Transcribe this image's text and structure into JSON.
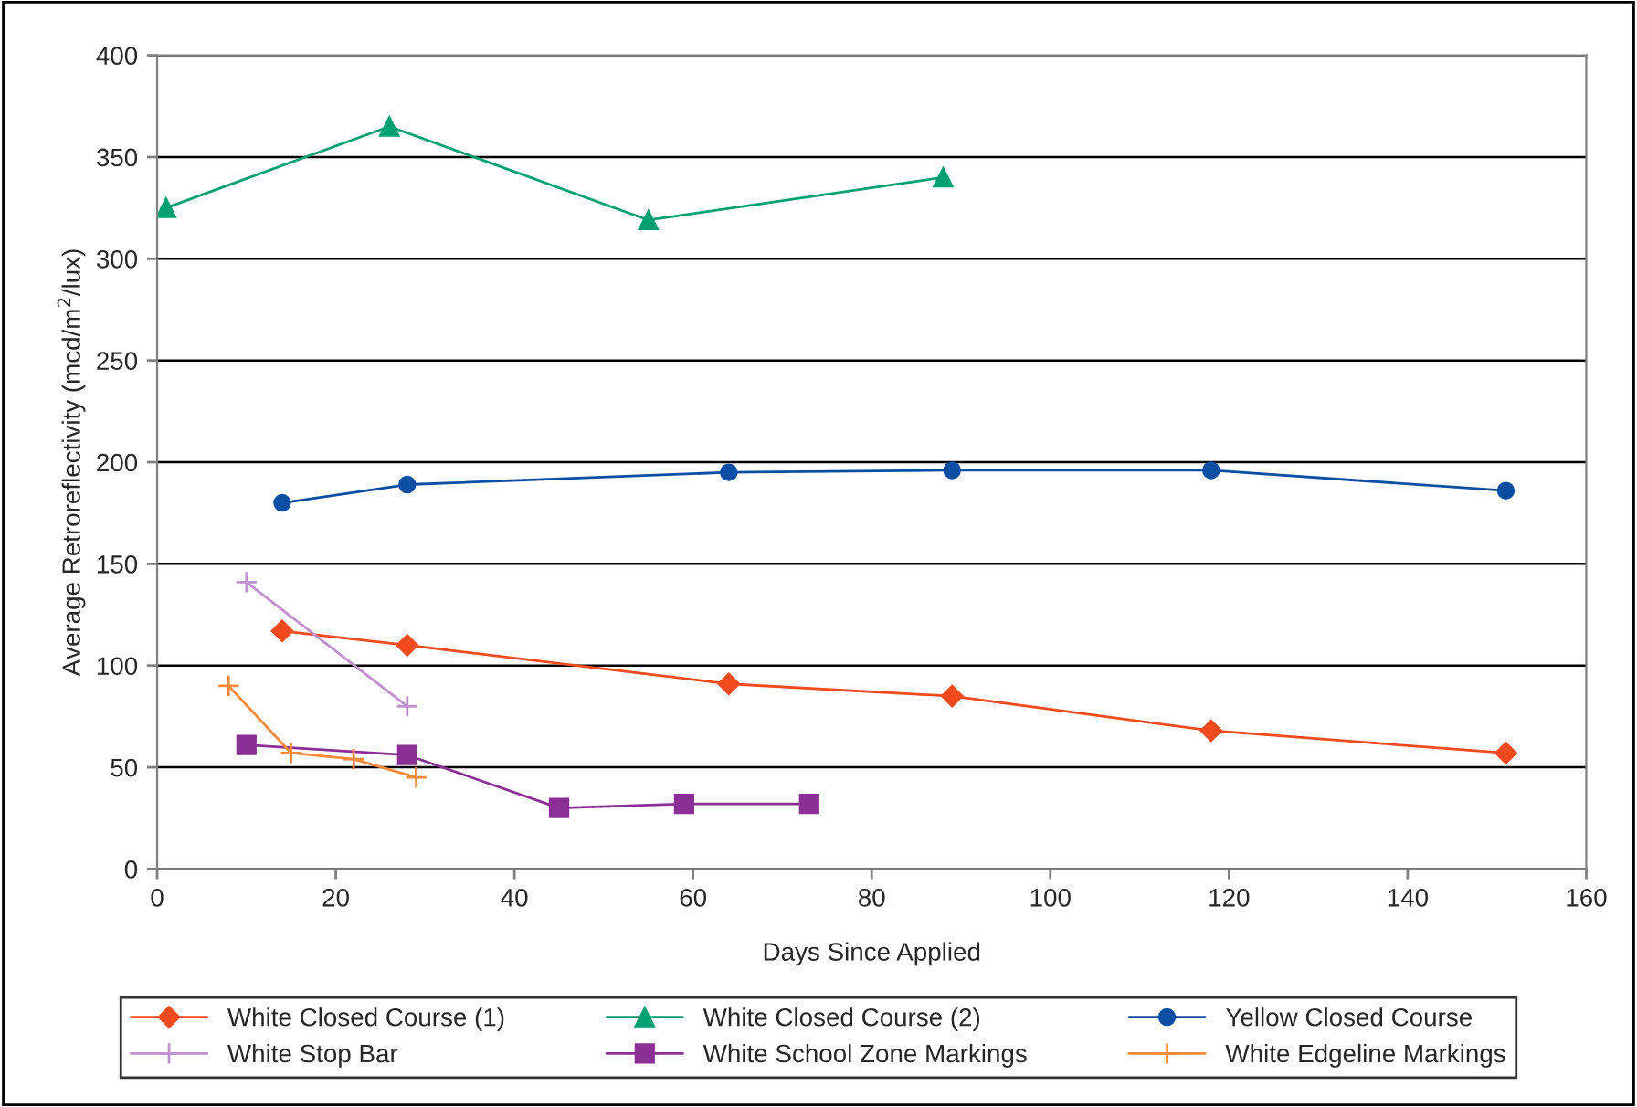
{
  "chart_data": {
    "type": "line",
    "xlabel": "Days Since Applied",
    "ylabel": "Average Retroreflectivity (mcd/m$^{2}$/lux)",
    "xlim": [
      0,
      160
    ],
    "xticks": [
      0,
      20,
      40,
      60,
      80,
      100,
      120,
      140,
      160
    ],
    "ylim": [
      0,
      400
    ],
    "yticks": [
      0,
      50,
      100,
      150,
      200,
      250,
      300,
      350,
      400
    ],
    "grid": "y",
    "legend": "bottom",
    "series": [
      {
        "name": "White Closed Course (1)",
        "color": "#f04a1e",
        "marker": "diamond",
        "x": [
          14,
          28,
          64,
          89,
          118,
          151
        ],
        "values": [
          117,
          110,
          91,
          85,
          68,
          57
        ]
      },
      {
        "name": "White Closed Course (2)",
        "color": "#00a070",
        "marker": "triangle",
        "x": [
          1,
          26,
          55,
          88
        ],
        "values": [
          325,
          365,
          319,
          340
        ]
      },
      {
        "name": "Yellow Closed Course",
        "color": "#0b4ea2",
        "marker": "circle",
        "x": [
          14,
          28,
          64,
          89,
          118,
          151
        ],
        "values": [
          180,
          189,
          195,
          196,
          196,
          186
        ]
      },
      {
        "name": "White Stop Bar",
        "color": "#c090d0",
        "marker": "cross",
        "x": [
          10,
          28
        ],
        "values": [
          141,
          80
        ]
      },
      {
        "name": "White School Zone Markings",
        "color": "#8b2f96",
        "marker": "square",
        "x": [
          10,
          28,
          45,
          59,
          73
        ],
        "values": [
          61,
          56,
          30,
          32,
          32
        ]
      },
      {
        "name": "White Edgeline Markings",
        "color": "#f98a3a",
        "marker": "cross",
        "x": [
          8,
          15,
          22,
          29
        ],
        "values": [
          90,
          57,
          54,
          45
        ]
      }
    ]
  }
}
